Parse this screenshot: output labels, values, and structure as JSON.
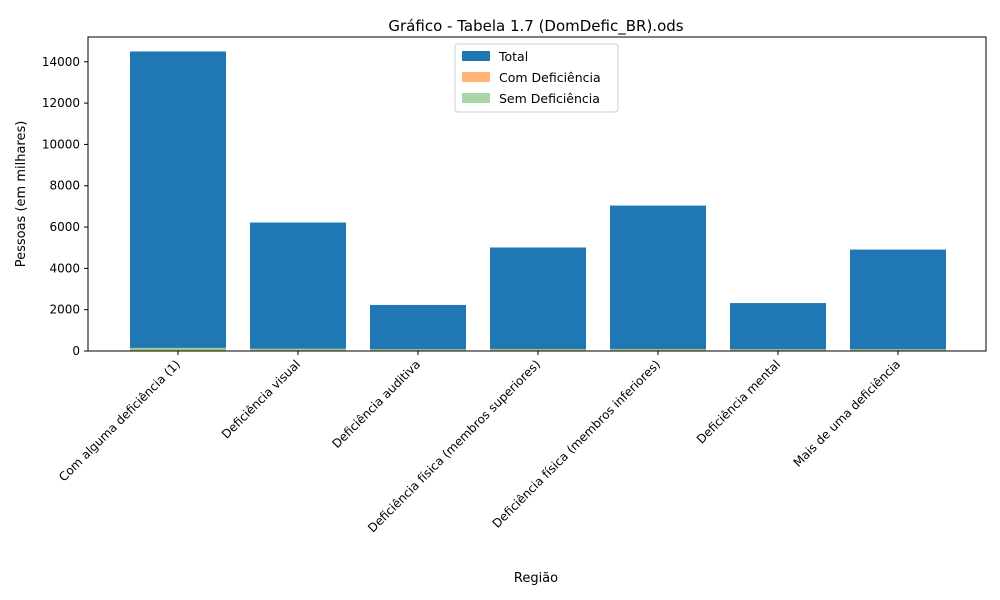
{
  "chart_data": {
    "type": "bar",
    "title": "Gráfico - Tabela 1.7 (DomDefic_BR).ods",
    "xlabel": "Região",
    "ylabel": "Pessoas (em milhares)",
    "categories": [
      "Com alguma deficiência (1)",
      "Deficiência visual",
      "Deficiência auditiva",
      "Deficiência física (membros superiores)",
      "Deficiência física (membros inferiores)",
      "Deficiência mental",
      "Mais de uma deficiência"
    ],
    "series": [
      {
        "name": "Total",
        "color": "#1f77b4",
        "values": [
          14500,
          6220,
          2230,
          5010,
          7040,
          2320,
          4910
        ]
      },
      {
        "name": "Com Deficiência",
        "color": "#ffa85a",
        "values": [
          150,
          110,
          90,
          100,
          100,
          90,
          90
        ]
      },
      {
        "name": "Sem Deficiência",
        "color": "#98cf98",
        "values": [
          150,
          110,
          80,
          90,
          90,
          80,
          80
        ]
      }
    ],
    "ylim": [
      0,
      15200
    ],
    "yticks": [
      0,
      2000,
      4000,
      6000,
      8000,
      10000,
      12000,
      14000
    ],
    "legend_position": "top-center",
    "grid": false
  }
}
